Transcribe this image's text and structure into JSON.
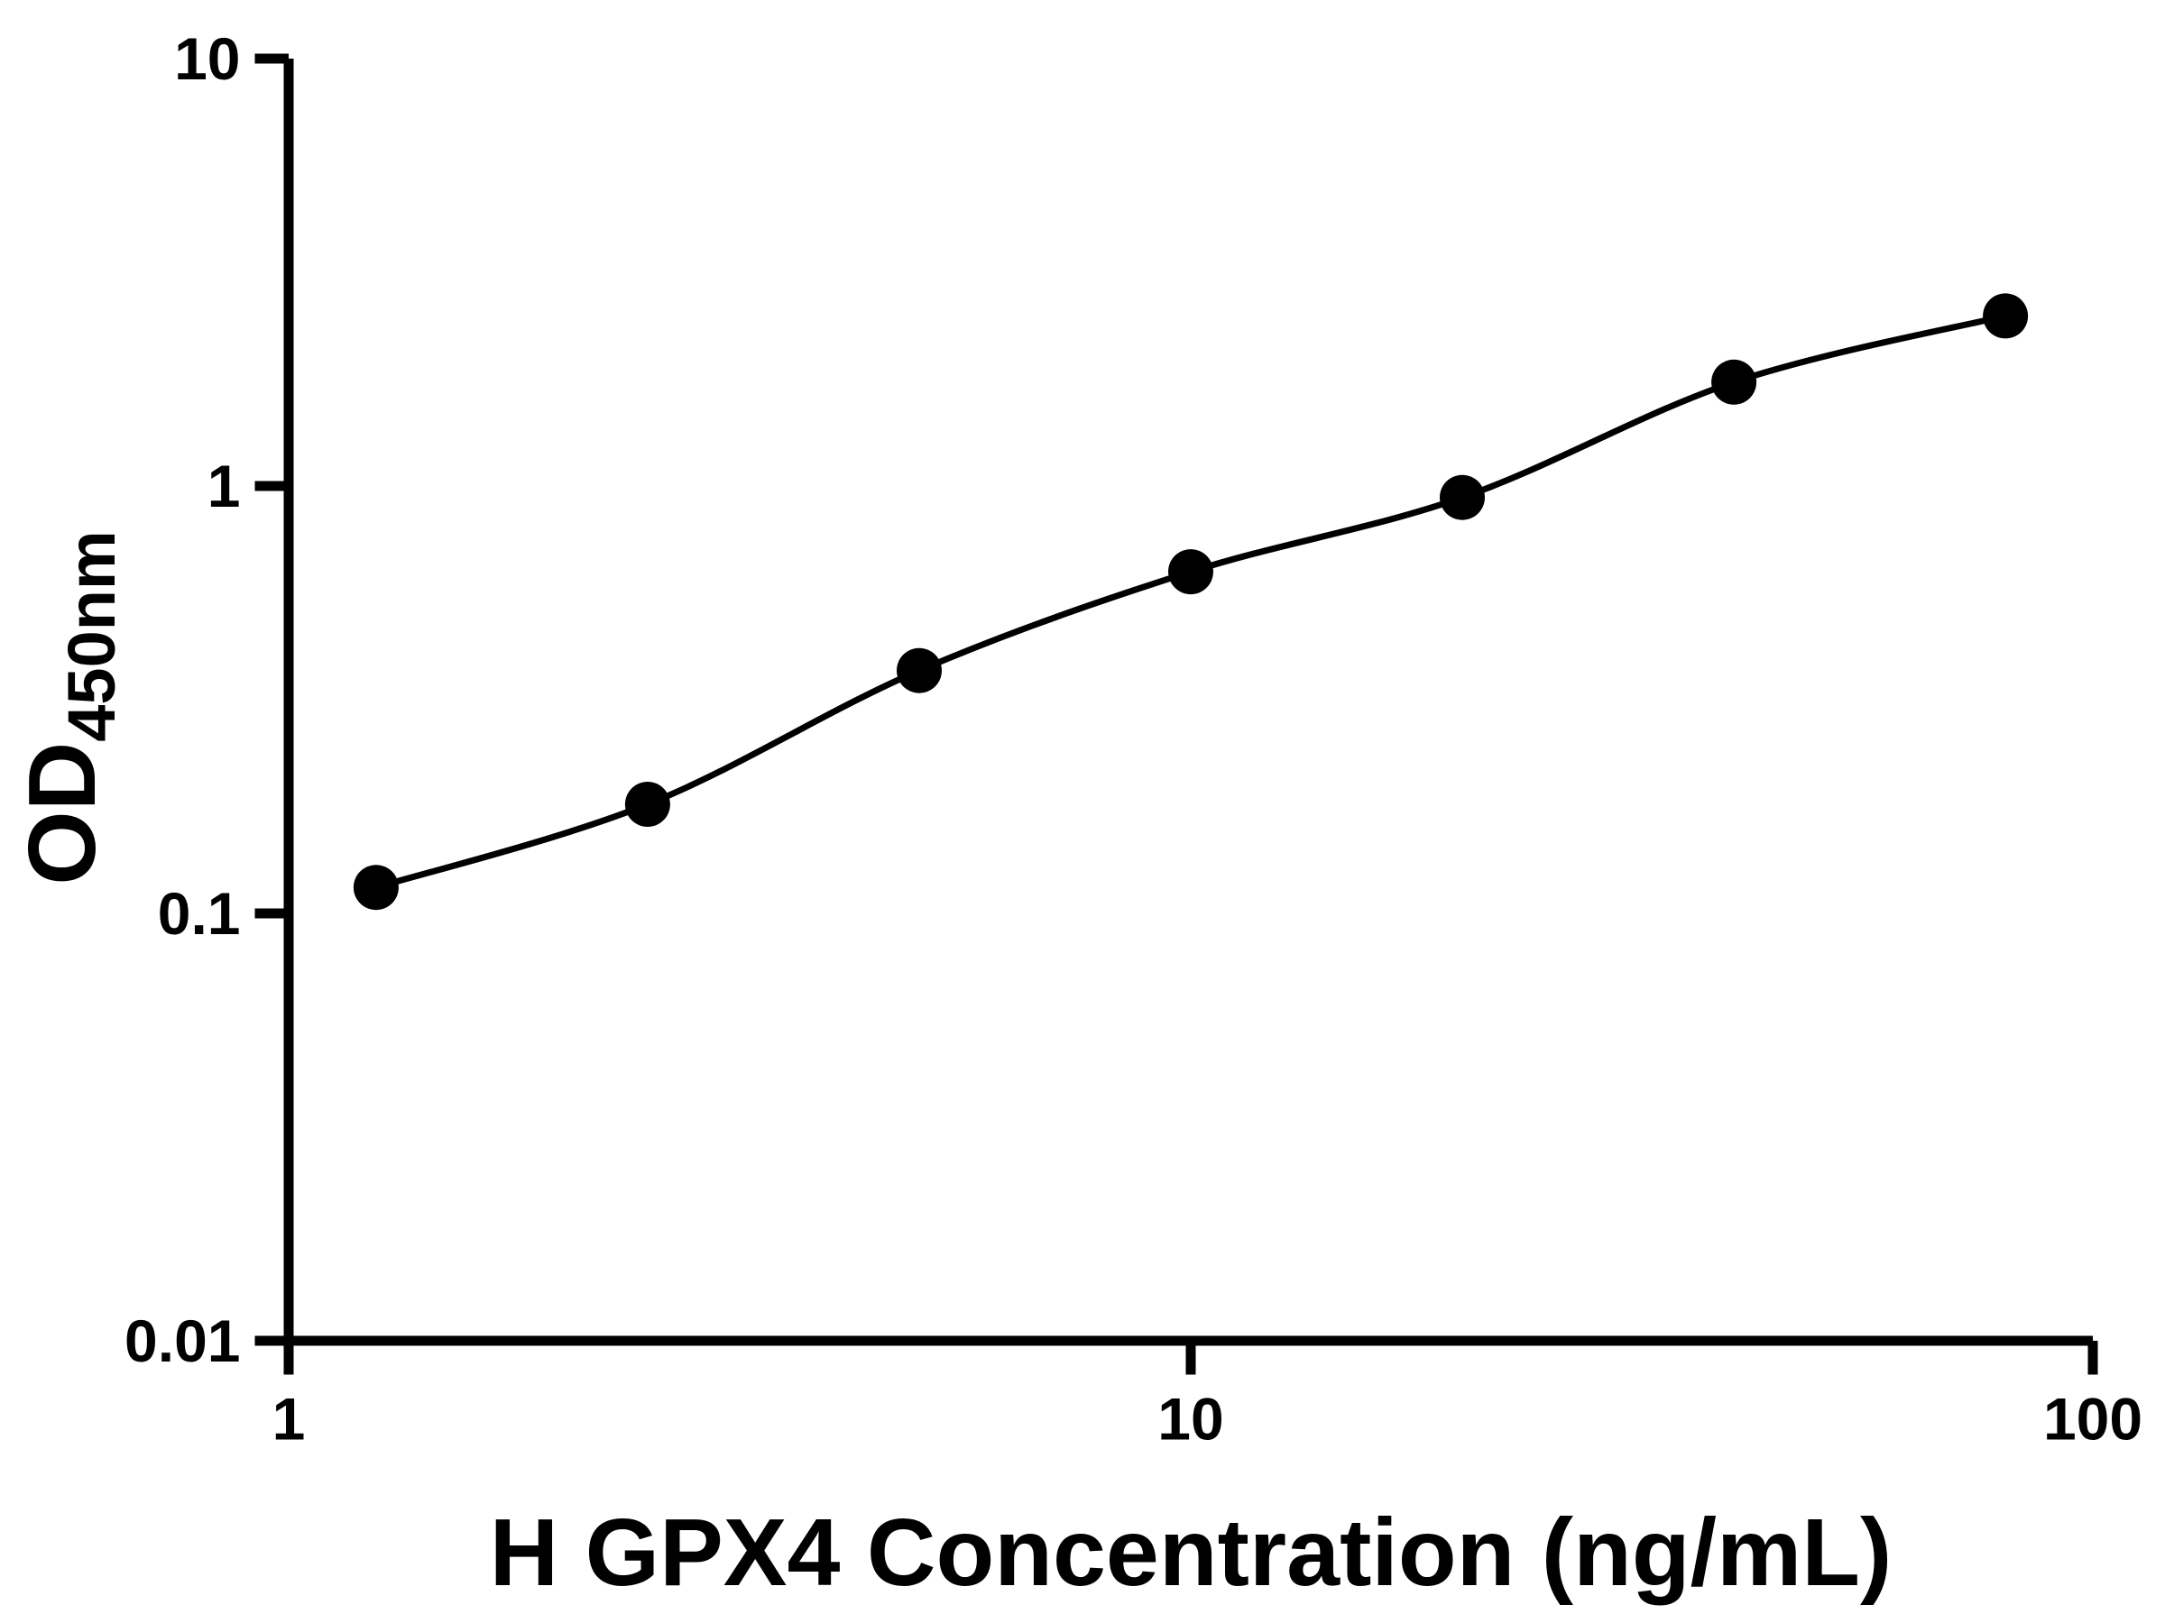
{
  "chart_data": {
    "type": "scatter",
    "xlabel": "H GPX4 Concentration (ng/mL)",
    "ylabel_main": "OD",
    "ylabel_sub": "450nm",
    "x_scale": "log",
    "y_scale": "log",
    "xlim": [
      1,
      100
    ],
    "ylim": [
      0.01,
      10
    ],
    "x_ticks": [
      1,
      10,
      100
    ],
    "x_tick_labels": [
      "1",
      "10",
      "100"
    ],
    "y_ticks": [
      0.01,
      0.1,
      1,
      10
    ],
    "y_tick_labels": [
      "0.01",
      "0.1",
      "1",
      "10"
    ],
    "series": [
      {
        "x": [
          1.25,
          2.5,
          5,
          10,
          20,
          40,
          80
        ],
        "y": [
          0.115,
          0.18,
          0.37,
          0.63,
          0.94,
          1.75,
          2.5
        ],
        "marker": "circle",
        "marker_color": "#000000",
        "line_color": "#000000",
        "smooth_fit_curve": true
      }
    ],
    "grid": false,
    "legend": false,
    "background_color": "#ffffff",
    "axis_color": "#000000"
  }
}
